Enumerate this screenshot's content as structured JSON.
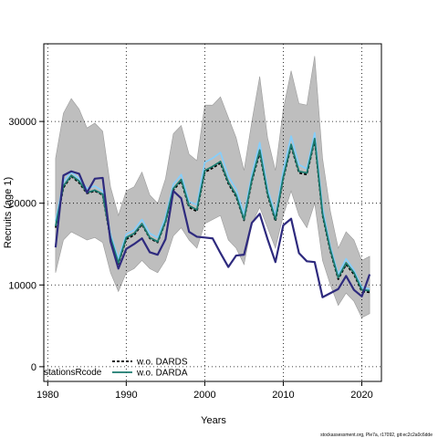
{
  "chart_data": {
    "type": "line",
    "title": "",
    "xlabel": "Years",
    "ylabel": "Recruits (age 1)",
    "xlim": [
      1979.5,
      2022.5
    ],
    "ylim": [
      -1800,
      39500
    ],
    "xticks": [
      1980,
      1990,
      2000,
      2010,
      2020
    ],
    "yticks": [
      0,
      10000,
      20000,
      30000
    ],
    "ytick_labels": [
      "0",
      "10000",
      "20000",
      "30000"
    ],
    "grid": true,
    "x": [
      1981,
      1982,
      1983,
      1984,
      1985,
      1986,
      1987,
      1988,
      1989,
      1990,
      1991,
      1992,
      1993,
      1994,
      1995,
      1996,
      1997,
      1998,
      1999,
      2000,
      2001,
      2002,
      2003,
      2004,
      2005,
      2006,
      2007,
      2008,
      2009,
      2010,
      2011,
      2012,
      2013,
      2014,
      2015,
      2016,
      2017,
      2018,
      2019,
      2020,
      2021
    ],
    "band": {
      "upper": [
        25500,
        31000,
        32800,
        31500,
        29200,
        29800,
        28800,
        22000,
        18500,
        21500,
        22000,
        23800,
        21000,
        20000,
        23000,
        28500,
        29500,
        26000,
        25200,
        32000,
        32000,
        33000,
        30500,
        28000,
        24000,
        30000,
        35500,
        28000,
        24000,
        31500,
        36200,
        32200,
        32000,
        38000,
        25500,
        19000,
        14500,
        16500,
        15500,
        13000,
        13500
      ],
      "lower": [
        11500,
        15500,
        16500,
        16000,
        15500,
        15800,
        15200,
        11500,
        9200,
        11500,
        12000,
        13000,
        12000,
        11500,
        13000,
        16000,
        17000,
        15500,
        14500,
        17500,
        18000,
        18500,
        15500,
        14500,
        12500,
        17500,
        19500,
        17000,
        14500,
        18500,
        21500,
        18500,
        17000,
        20000,
        13000,
        10000,
        7500,
        9000,
        8000,
        6000,
        6500
      ]
    },
    "series": [
      {
        "name": "",
        "color": "#87cefa",
        "values": [
          17800,
          22600,
          23800,
          23000,
          21800,
          22100,
          21500,
          16200,
          13200,
          16200,
          16700,
          18000,
          16300,
          15800,
          18300,
          22300,
          23500,
          20200,
          19800,
          25000,
          25500,
          26200,
          23300,
          21700,
          18600,
          23500,
          27400,
          21800,
          18500,
          24000,
          28200,
          24700,
          24200,
          28600,
          19400,
          14700,
          11300,
          13200,
          11800,
          9700,
          9500
        ]
      },
      {
        "name": "w.o. DARDS",
        "color": "#000000",
        "dash": "3,2",
        "values": [
          17000,
          21900,
          23300,
          22500,
          21200,
          21500,
          21000,
          15600,
          12600,
          15600,
          16100,
          17400,
          15700,
          15200,
          17700,
          21600,
          22700,
          19500,
          19000,
          23800,
          24300,
          24900,
          22400,
          20800,
          17900,
          22700,
          26200,
          21000,
          17800,
          23000,
          27000,
          23700,
          23500,
          27700,
          18500,
          14100,
          10700,
          12500,
          11300,
          9200,
          9100
        ]
      },
      {
        "name": "w.o. DARDA",
        "color": "#1a7a6e",
        "values": [
          17200,
          22100,
          23400,
          22700,
          21300,
          21600,
          21100,
          15800,
          12700,
          15800,
          16300,
          17500,
          15800,
          15300,
          17800,
          21800,
          22900,
          19700,
          19200,
          24000,
          24500,
          25100,
          22600,
          21000,
          18000,
          22900,
          26500,
          21200,
          18000,
          23200,
          27200,
          23900,
          23700,
          27900,
          18700,
          14300,
          10900,
          12700,
          11500,
          9400,
          9300
        ]
      },
      {
        "name": "",
        "color": "#2e2a7e",
        "values": [
          14600,
          23400,
          23900,
          23600,
          21300,
          23000,
          23100,
          15300,
          12000,
          14400,
          15000,
          15700,
          14000,
          13700,
          15600,
          21500,
          20600,
          16500,
          15900,
          15800,
          15700,
          13900,
          12200,
          13600,
          13700,
          17600,
          18700,
          15600,
          12800,
          17300,
          18100,
          13900,
          12900,
          12800,
          8500,
          9000,
          9500,
          11100,
          9400,
          8600,
          11300
        ]
      }
    ],
    "legend": {
      "title": "stationsRcode",
      "placement": "bottom-left",
      "entries": [
        {
          "label": "w.o. DARDS",
          "color": "#000000",
          "dash": "3,2"
        },
        {
          "label": "w.o. DARDA",
          "color": "#1a7a6e",
          "dash": ""
        }
      ]
    },
    "caption": "stockassessment.org, Ple7a, r17092, git:ec2c2a0c6dde"
  }
}
